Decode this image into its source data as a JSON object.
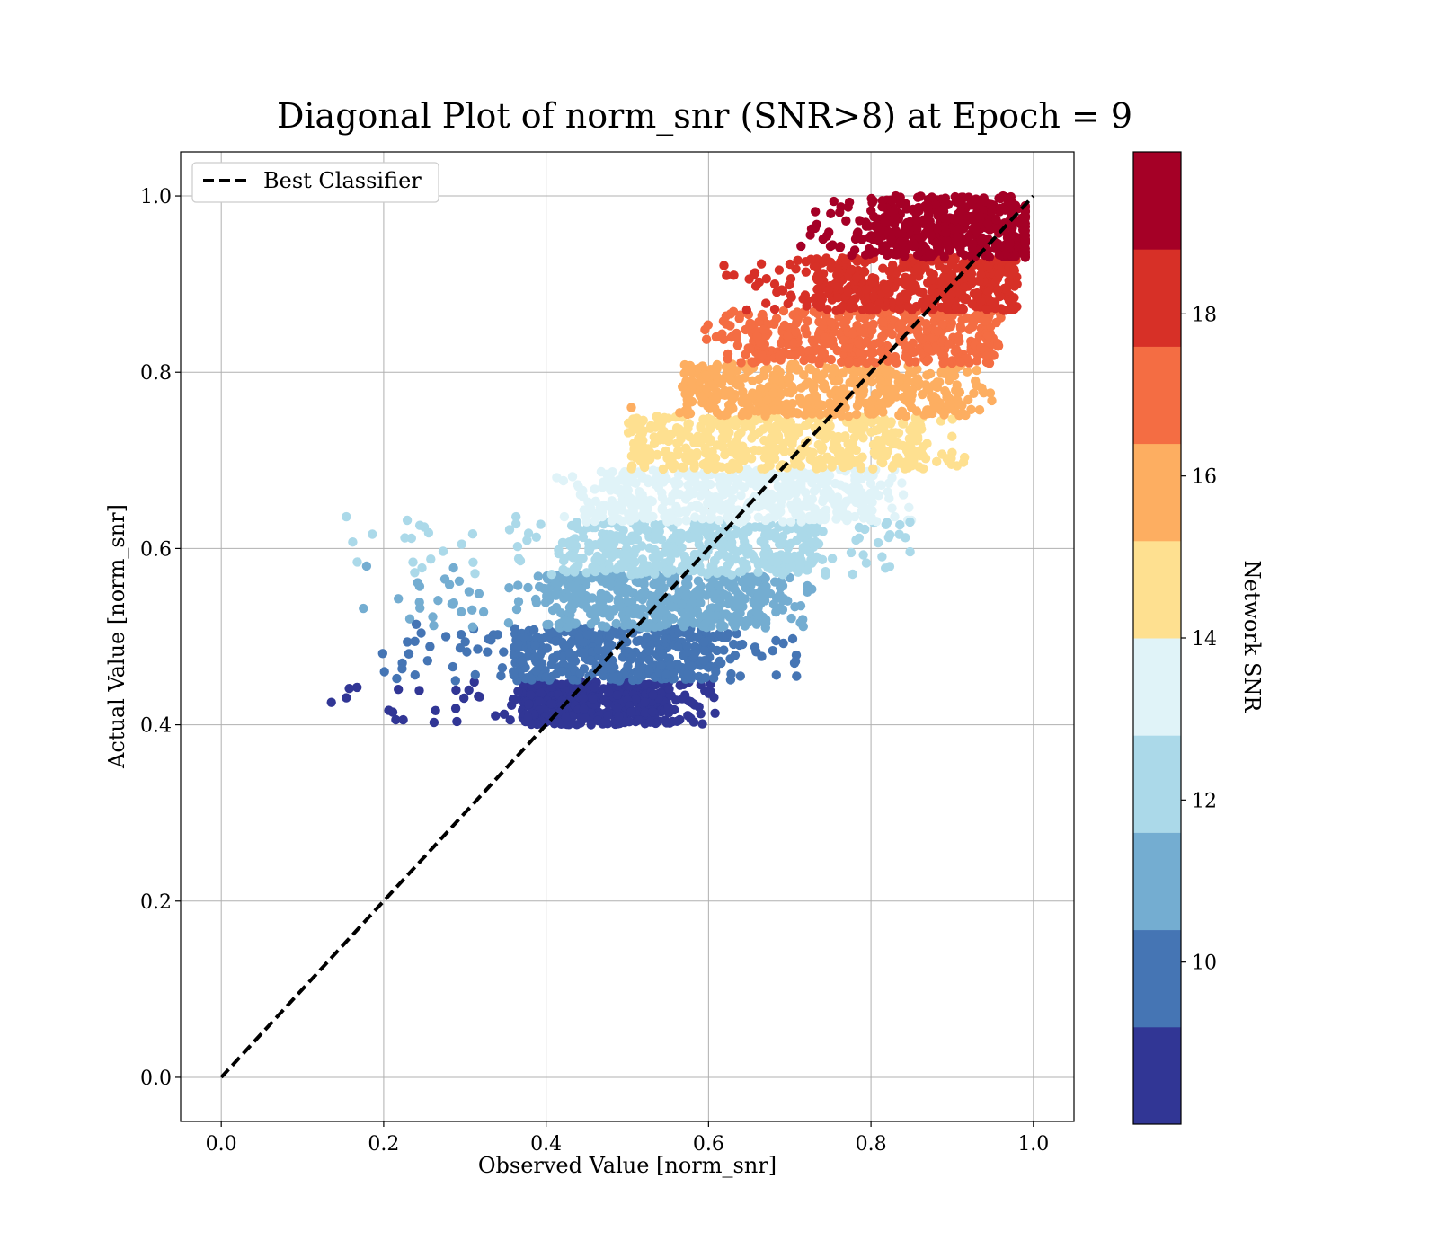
{
  "chart_data": {
    "type": "scatter",
    "title": "Diagonal Plot of norm_snr (SNR>8) at Epoch = 9",
    "xlabel": "Observed Value [norm_snr]",
    "ylabel": "Actual Value [norm_snr]",
    "xlim": [
      -0.05,
      1.05
    ],
    "ylim": [
      -0.05,
      1.05
    ],
    "xticks": [
      "0.0",
      "0.2",
      "0.4",
      "0.6",
      "0.8",
      "1.0"
    ],
    "yticks": [
      "0.0",
      "0.2",
      "0.4",
      "0.6",
      "0.8",
      "1.0"
    ],
    "grid": true,
    "legend": {
      "placement": "top-left",
      "entries": [
        {
          "label": "Best Classifier",
          "style": "dashed",
          "color": "#000000"
        }
      ]
    },
    "reference_line": {
      "label": "Best Classifier",
      "x": [
        0.0,
        1.0
      ],
      "y": [
        0.0,
        1.0
      ]
    },
    "colorbar": {
      "label": "Network SNR",
      "range": [
        8,
        20
      ],
      "ticks": [
        "10",
        "12",
        "14",
        "16",
        "18"
      ],
      "colors": [
        "#313695",
        "#4575b4",
        "#74add1",
        "#abd9e9",
        "#e0f3f8",
        "#fee090",
        "#fdae61",
        "#f46d43",
        "#d73027",
        "#a50026"
      ]
    },
    "bands": [
      {
        "snr_bin": [
          8.0,
          9.2
        ],
        "color": "#313695",
        "y": [
          0.4,
          0.45
        ],
        "x_core": [
          0.37,
          0.55
        ],
        "x_spread": [
          0.13,
          0.61
        ]
      },
      {
        "snr_bin": [
          9.2,
          10.4
        ],
        "color": "#4575b4",
        "y": [
          0.45,
          0.51
        ],
        "x_core": [
          0.36,
          0.61
        ],
        "x_spread": [
          0.18,
          0.71
        ]
      },
      {
        "snr_bin": [
          10.4,
          11.6
        ],
        "color": "#74add1",
        "y": [
          0.51,
          0.57
        ],
        "x_core": [
          0.4,
          0.67
        ],
        "x_spread": [
          0.18,
          0.73
        ]
      },
      {
        "snr_bin": [
          11.6,
          12.8
        ],
        "color": "#abd9e9",
        "y": [
          0.57,
          0.63
        ],
        "x_core": [
          0.42,
          0.73
        ],
        "x_spread": [
          0.15,
          0.85
        ]
      },
      {
        "snr_bin": [
          12.8,
          14.0
        ],
        "color": "#e0f3f8",
        "y": [
          0.63,
          0.69
        ],
        "x_core": [
          0.48,
          0.8
        ],
        "x_spread": [
          0.41,
          0.85
        ]
      },
      {
        "snr_bin": [
          14.0,
          15.2
        ],
        "color": "#fee090",
        "y": [
          0.69,
          0.75
        ],
        "x_core": [
          0.52,
          0.86
        ],
        "x_spread": [
          0.5,
          0.92
        ]
      },
      {
        "snr_bin": [
          15.2,
          16.4
        ],
        "color": "#fdae61",
        "y": [
          0.75,
          0.81
        ],
        "x_core": [
          0.58,
          0.9
        ],
        "x_spread": [
          0.56,
          0.95
        ]
      },
      {
        "snr_bin": [
          16.4,
          17.6
        ],
        "color": "#f46d43",
        "y": [
          0.81,
          0.87
        ],
        "x_core": [
          0.65,
          0.94
        ],
        "x_spread": [
          0.58,
          0.96
        ]
      },
      {
        "snr_bin": [
          17.6,
          18.8
        ],
        "color": "#d73027",
        "y": [
          0.87,
          0.93
        ],
        "x_core": [
          0.73,
          0.97
        ],
        "x_spread": [
          0.62,
          0.98
        ]
      },
      {
        "snr_bin": [
          18.8,
          20.0
        ],
        "color": "#a50026",
        "y": [
          0.93,
          1.0
        ],
        "x_core": [
          0.8,
          0.99
        ],
        "x_spread": [
          0.71,
          0.99
        ]
      }
    ],
    "outliers": [
      {
        "x": 0.154,
        "y": 0.636,
        "color": "#abd9e9"
      },
      {
        "x": 0.229,
        "y": 0.632,
        "color": "#abd9e9"
      },
      {
        "x": 0.363,
        "y": 0.636,
        "color": "#abd9e9"
      },
      {
        "x": 0.179,
        "y": 0.58,
        "color": "#74add1"
      },
      {
        "x": 0.286,
        "y": 0.578,
        "color": "#74add1"
      },
      {
        "x": 0.175,
        "y": 0.532,
        "color": "#74add1"
      },
      {
        "x": 0.218,
        "y": 0.543,
        "color": "#74add1"
      },
      {
        "x": 0.244,
        "y": 0.539,
        "color": "#74add1"
      },
      {
        "x": 0.284,
        "y": 0.537,
        "color": "#74add1"
      },
      {
        "x": 0.323,
        "y": 0.528,
        "color": "#74add1"
      },
      {
        "x": 0.24,
        "y": 0.514,
        "color": "#4575b4"
      },
      {
        "x": 0.608,
        "y": 0.413,
        "color": "#313695"
      },
      {
        "x": 0.708,
        "y": 0.479,
        "color": "#4575b4"
      },
      {
        "x": 0.679,
        "y": 0.484,
        "color": "#4575b4"
      },
      {
        "x": 0.848,
        "y": 0.63,
        "color": "#abd9e9"
      },
      {
        "x": 0.741,
        "y": 0.951,
        "color": "#a50026"
      },
      {
        "x": 0.619,
        "y": 0.921,
        "color": "#d73027"
      },
      {
        "x": 0.93,
        "y": 0.785,
        "color": "#fdae61"
      },
      {
        "x": 0.505,
        "y": 0.76,
        "color": "#fdae61"
      }
    ]
  },
  "colorbar_ticks": [
    "10",
    "12",
    "14",
    "16",
    "18"
  ]
}
